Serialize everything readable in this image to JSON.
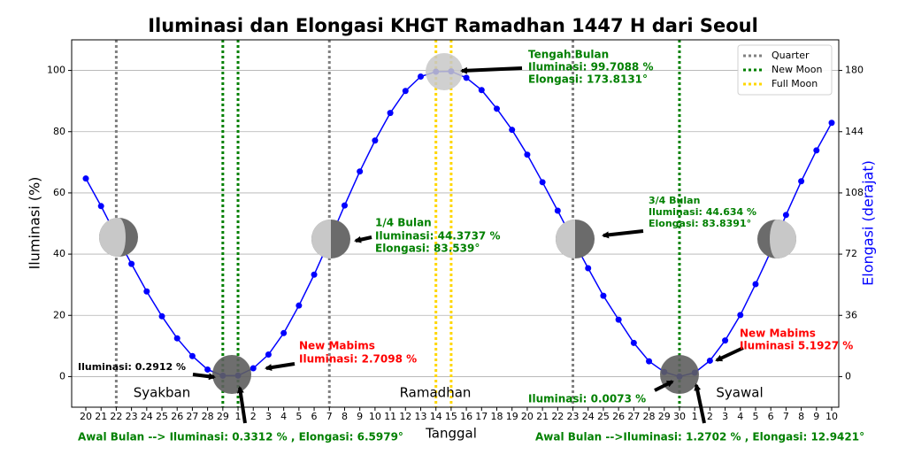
{
  "chart_data": {
    "type": "line",
    "title": "Iluminasi dan Elongasi KHGT Ramadhan 1447 H dari Seoul",
    "xlabel": "Tanggal",
    "ylabel": "Iluminasi (%)",
    "y2label": "Elongasi (derajat)",
    "categories": [
      "20",
      "21",
      "22",
      "23",
      "24",
      "25",
      "26",
      "27",
      "28",
      "29",
      "1",
      "2",
      "3",
      "4",
      "5",
      "6",
      "7",
      "8",
      "9",
      "10",
      "11",
      "12",
      "13",
      "14",
      "15",
      "16",
      "17",
      "18",
      "19",
      "20",
      "21",
      "22",
      "23",
      "24",
      "25",
      "26",
      "27",
      "28",
      "29",
      "30",
      "1",
      "2",
      "3",
      "4",
      "5",
      "6",
      "7",
      "8",
      "9",
      "10"
    ],
    "series": [
      {
        "color": "#0000ff",
        "values": [
          64.7,
          55.7,
          46.0,
          36.8,
          27.8,
          19.7,
          12.5,
          6.7,
          2.3,
          0.2912,
          0.3312,
          2.7098,
          7.2,
          14.2,
          23.2,
          33.3,
          44.3737,
          55.9,
          67.0,
          77.1,
          86.1,
          93.3,
          98.0,
          99.6,
          99.7088,
          97.6,
          93.6,
          87.5,
          80.6,
          72.5,
          63.5,
          54.2,
          44.634,
          35.4,
          26.4,
          18.6,
          11.0,
          5.0,
          1.5,
          0.0073,
          1.2702,
          5.1927,
          11.8,
          20.1,
          30.2,
          40.9,
          52.8,
          63.8,
          73.9,
          82.9
        ]
      }
    ],
    "ylim": [
      -10,
      110
    ],
    "yticks": [
      0,
      20,
      40,
      60,
      80,
      100
    ],
    "y2lim": [
      -18,
      198
    ],
    "y2ticks": [
      0,
      36,
      72,
      108,
      144,
      180
    ],
    "y2color": "#0000ff",
    "grid": true,
    "legend": "upper right",
    "vlines": [
      {
        "name": "Quarter",
        "color": "#808080",
        "at": [
          2,
          16,
          32
        ]
      },
      {
        "name": "New Moon",
        "color": "#008000",
        "at": [
          9,
          10,
          39
        ]
      },
      {
        "name": "Full Moon",
        "color": "#ffd700",
        "at": [
          23,
          24
        ]
      }
    ],
    "months": [
      "Syakban",
      "Ramadhan",
      "Syawal"
    ],
    "annotations": [
      {
        "color": "#008000",
        "lines": [
          "Tengah Bulan",
          "Iluminasi: 99.7088 %",
          "Elongasi: 173.8131°"
        ]
      },
      {
        "color": "#008000",
        "lines": [
          "1/4 Bulan",
          "Iluminasi: 44.3737 %",
          "Elongasi: 83.539°"
        ]
      },
      {
        "color": "#008000",
        "lines": [
          "3/4 Bulan",
          "Iluminasi: 44.634 %",
          "Elongasi: 83.8391°"
        ]
      },
      {
        "color": "#000000",
        "lines": [
          "Iluminasi: 0.2912 %"
        ]
      },
      {
        "color": "#ff0000",
        "lines": [
          "New Mabims",
          "Iluminasi: 2.7098 %"
        ]
      },
      {
        "color": "#008000",
        "lines": [
          "Iluminasi: 0.0073 %"
        ]
      },
      {
        "color": "#ff0000",
        "lines": [
          "New Mabims",
          "Iluminasi 5.1927 %"
        ]
      },
      {
        "color": "#008000",
        "lines": [
          "Awal Bulan --> Iluminasi: 0.3312 % , Elongasi: 6.5979°"
        ]
      },
      {
        "color": "#008000",
        "lines": [
          "Awal Bulan -->Iluminasi: 1.2702 % , Elongasi: 12.9421°"
        ]
      }
    ]
  }
}
